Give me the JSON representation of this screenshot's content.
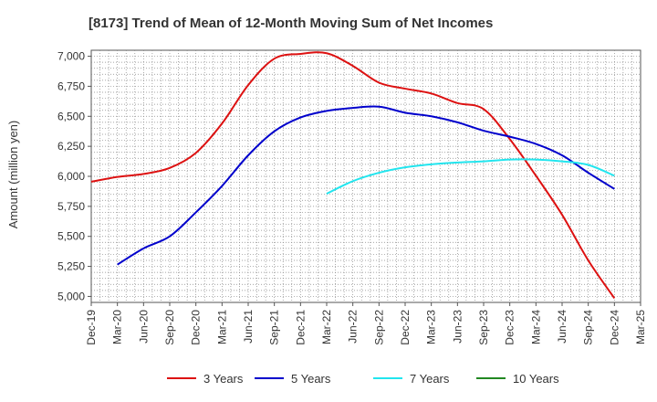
{
  "chart_data": {
    "type": "line",
    "title": "[8173]  Trend of Mean of 12-Month Moving Sum of Net Incomes",
    "xlabel": "",
    "ylabel": "Amount (million yen)",
    "ylim": [
      4950,
      7050
    ],
    "yticks": [
      5000,
      5250,
      5500,
      5750,
      6000,
      6250,
      6500,
      6750,
      7000
    ],
    "ytick_labels": [
      "5,000",
      "5,250",
      "5,500",
      "5,750",
      "6,000",
      "6,250",
      "6,500",
      "6,750",
      "7,000"
    ],
    "x_range": [
      "2019-12",
      "2025-03"
    ],
    "x_tick_labels": [
      "Dec-19",
      "Mar-20",
      "Jun-20",
      "Sep-20",
      "Dec-20",
      "Mar-21",
      "Jun-21",
      "Sep-21",
      "Dec-21",
      "Mar-22",
      "Jun-22",
      "Sep-22",
      "Dec-22",
      "Mar-23",
      "Jun-23",
      "Sep-23",
      "Dec-23",
      "Mar-24",
      "Jun-24",
      "Sep-24",
      "Dec-24",
      "Mar-25"
    ],
    "grid": true,
    "legend_position": "bottom",
    "series": [
      {
        "name": "3 Years",
        "color": "#dd1111",
        "points": [
          [
            "2019-12",
            5955
          ],
          [
            "2020-03",
            5995
          ],
          [
            "2020-06",
            6020
          ],
          [
            "2020-09",
            6070
          ],
          [
            "2020-12",
            6195
          ],
          [
            "2021-03",
            6440
          ],
          [
            "2021-06",
            6760
          ],
          [
            "2021-09",
            6980
          ],
          [
            "2021-12",
            7020
          ],
          [
            "2022-03",
            7025
          ],
          [
            "2022-06",
            6920
          ],
          [
            "2022-09",
            6780
          ],
          [
            "2022-12",
            6730
          ],
          [
            "2023-03",
            6690
          ],
          [
            "2023-06",
            6610
          ],
          [
            "2023-09",
            6560
          ],
          [
            "2023-12",
            6310
          ],
          [
            "2024-03",
            6005
          ],
          [
            "2024-06",
            5680
          ],
          [
            "2024-09",
            5300
          ],
          [
            "2024-12",
            4985
          ]
        ]
      },
      {
        "name": "5 Years",
        "color": "#0000cc",
        "points": [
          [
            "2020-03",
            5265
          ],
          [
            "2020-06",
            5400
          ],
          [
            "2020-09",
            5500
          ],
          [
            "2020-12",
            5700
          ],
          [
            "2021-03",
            5920
          ],
          [
            "2021-06",
            6175
          ],
          [
            "2021-09",
            6375
          ],
          [
            "2021-12",
            6490
          ],
          [
            "2022-03",
            6545
          ],
          [
            "2022-06",
            6570
          ],
          [
            "2022-09",
            6580
          ],
          [
            "2022-12",
            6530
          ],
          [
            "2023-03",
            6500
          ],
          [
            "2023-06",
            6450
          ],
          [
            "2023-09",
            6380
          ],
          [
            "2023-12",
            6330
          ],
          [
            "2024-03",
            6270
          ],
          [
            "2024-06",
            6175
          ],
          [
            "2024-09",
            6030
          ],
          [
            "2024-12",
            5895
          ]
        ]
      },
      {
        "name": "7 Years",
        "color": "#22e5ee",
        "points": [
          [
            "2022-03",
            5855
          ],
          [
            "2022-06",
            5960
          ],
          [
            "2022-09",
            6030
          ],
          [
            "2022-12",
            6075
          ],
          [
            "2023-03",
            6100
          ],
          [
            "2023-06",
            6115
          ],
          [
            "2023-09",
            6125
          ],
          [
            "2023-12",
            6140
          ],
          [
            "2024-03",
            6140
          ],
          [
            "2024-06",
            6125
          ],
          [
            "2024-09",
            6095
          ],
          [
            "2024-12",
            6005
          ]
        ]
      },
      {
        "name": "10 Years",
        "color": "#228822",
        "points": []
      }
    ]
  }
}
